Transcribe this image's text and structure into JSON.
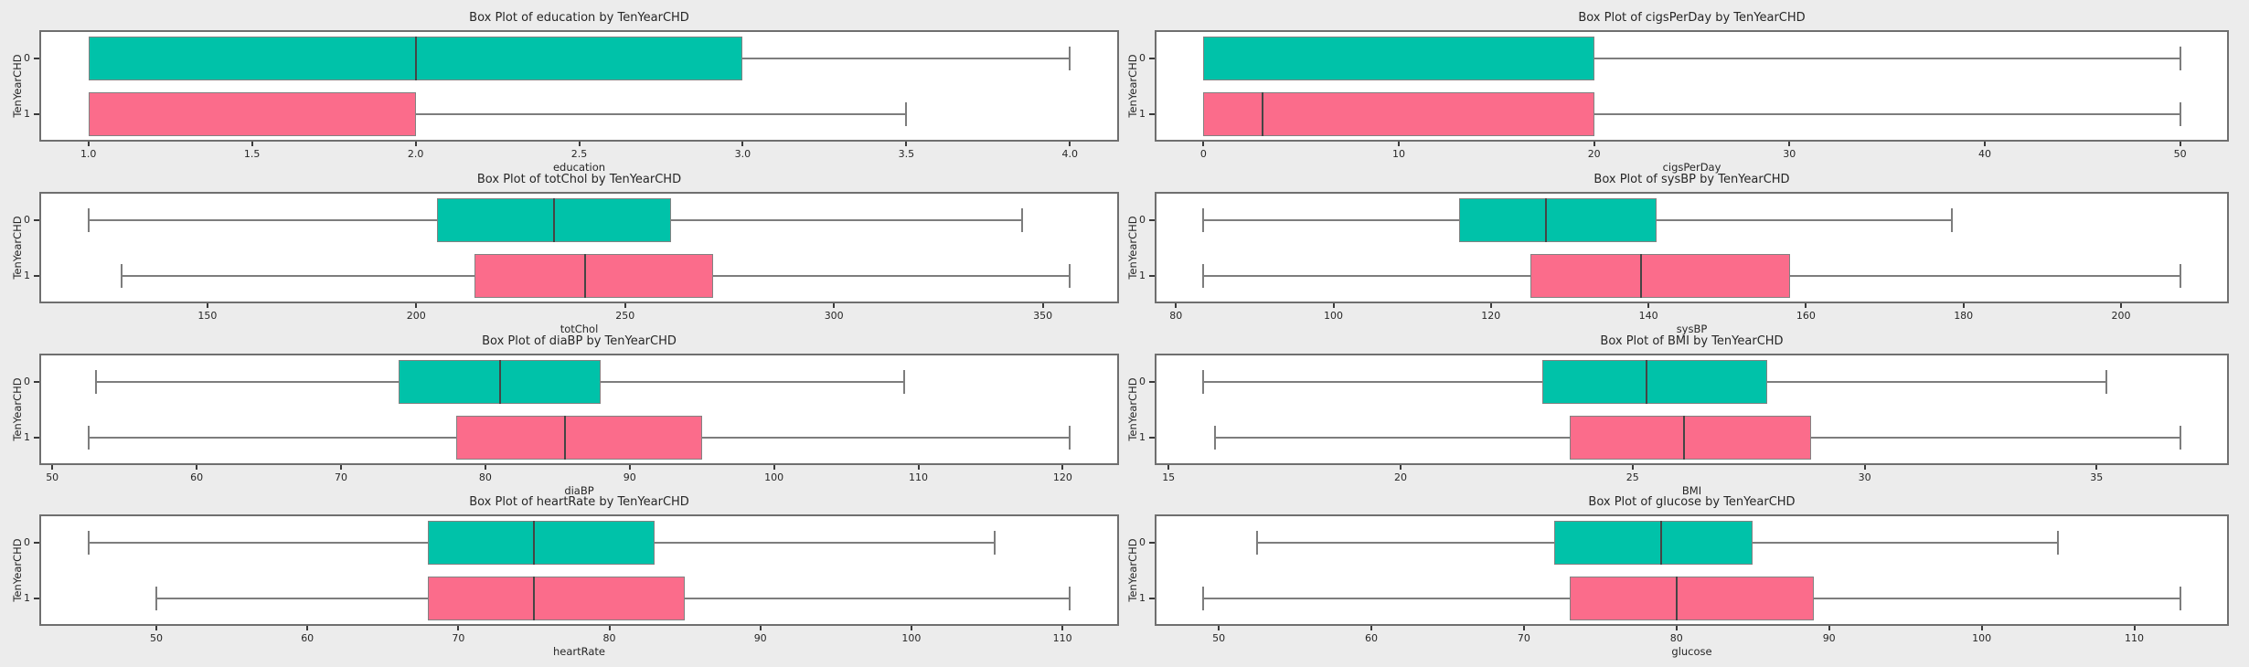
{
  "figure_title": "",
  "colors": {
    "figure_background": "#ececec",
    "axes_background": "#ffffff",
    "axes_border": "#6f6f6f",
    "group0_fill": "#00C2A9",
    "group1_fill": "#FB6C8B",
    "box_border": "#828282",
    "whisker": "#7d7d7d",
    "median_line": "#454545",
    "text": "#262626"
  },
  "chart_data": [
    {
      "type": "box",
      "orientation": "horizontal",
      "grid": false,
      "title": "Box Plot of education by TenYearCHD",
      "xlabel": "education",
      "ylabel": "TenYearCHD",
      "xlim": [
        0.85,
        4.15
      ],
      "tick_values": [
        1.0,
        1.5,
        2.0,
        2.5,
        3.0,
        3.5,
        4.0
      ],
      "tick_labels": [
        "1.0",
        "1.5",
        "2.0",
        "2.5",
        "3.0",
        "3.5",
        "4.0"
      ],
      "groups": [
        {
          "label": "0",
          "whisker_min": 1.0,
          "q1": 1.0,
          "median": 2.0,
          "q3": 3.0,
          "whisker_max": 4.0
        },
        {
          "label": "1",
          "whisker_min": 1.0,
          "q1": 1.0,
          "median": 1.0,
          "q3": 2.0,
          "whisker_max": 3.5
        }
      ]
    },
    {
      "type": "box",
      "orientation": "horizontal",
      "grid": false,
      "title": "Box Plot of cigsPerDay by TenYearCHD",
      "xlabel": "cigsPerDay",
      "ylabel": "TenYearCHD",
      "xlim": [
        -2.5,
        52.5
      ],
      "tick_values": [
        0,
        10,
        20,
        30,
        40,
        50
      ],
      "tick_labels": [
        "0",
        "10",
        "20",
        "30",
        "40",
        "50"
      ],
      "groups": [
        {
          "label": "0",
          "whisker_min": 0,
          "q1": 0,
          "median": 0,
          "q3": 20,
          "whisker_max": 50
        },
        {
          "label": "1",
          "whisker_min": 0,
          "q1": 0,
          "median": 3,
          "q3": 20,
          "whisker_max": 50
        }
      ]
    },
    {
      "type": "box",
      "orientation": "horizontal",
      "grid": false,
      "title": "Box Plot of totChol by TenYearCHD",
      "xlabel": "totChol",
      "ylabel": "TenYearCHD",
      "xlim": [
        109.75,
        368.25
      ],
      "tick_values": [
        150,
        200,
        250,
        300,
        350
      ],
      "tick_labels": [
        "150",
        "200",
        "250",
        "300",
        "350"
      ],
      "groups": [
        {
          "label": "0",
          "whisker_min": 121.5,
          "q1": 205,
          "median": 233,
          "q3": 261,
          "whisker_max": 345
        },
        {
          "label": "1",
          "whisker_min": 129.5,
          "q1": 214,
          "median": 240.5,
          "q3": 271,
          "whisker_max": 356.5
        }
      ]
    },
    {
      "type": "box",
      "orientation": "horizontal",
      "grid": false,
      "title": "Box Plot of sysBP by TenYearCHD",
      "xlabel": "sysBP",
      "ylabel": "TenYearCHD",
      "xlim": [
        77.3,
        213.7
      ],
      "tick_values": [
        80,
        100,
        120,
        140,
        160,
        180,
        200
      ],
      "tick_labels": [
        "80",
        "100",
        "120",
        "140",
        "160",
        "180",
        "200"
      ],
      "groups": [
        {
          "label": "0",
          "whisker_min": 83.5,
          "q1": 116,
          "median": 127,
          "q3": 141,
          "whisker_max": 178.5
        },
        {
          "label": "1",
          "whisker_min": 83.5,
          "q1": 125,
          "median": 139,
          "q3": 158,
          "whisker_max": 207.5
        }
      ]
    },
    {
      "type": "box",
      "orientation": "horizontal",
      "grid": false,
      "title": "Box Plot of diaBP by TenYearCHD",
      "xlabel": "diaBP",
      "ylabel": "TenYearCHD",
      "xlim": [
        49.1,
        123.9
      ],
      "tick_values": [
        50,
        60,
        70,
        80,
        90,
        100,
        110,
        120
      ],
      "tick_labels": [
        "50",
        "60",
        "70",
        "80",
        "90",
        "100",
        "110",
        "120"
      ],
      "groups": [
        {
          "label": "0",
          "whisker_min": 53,
          "q1": 74,
          "median": 81,
          "q3": 88,
          "whisker_max": 109
        },
        {
          "label": "1",
          "whisker_min": 52.5,
          "q1": 78,
          "median": 85.5,
          "q3": 95,
          "whisker_max": 120.5
        }
      ]
    },
    {
      "type": "box",
      "orientation": "horizontal",
      "grid": false,
      "title": "Box Plot of BMI by TenYearCHD",
      "xlabel": "BMI",
      "ylabel": "TenYearCHD",
      "xlim": [
        14.7,
        37.85
      ],
      "tick_values": [
        15,
        20,
        25,
        30,
        35
      ],
      "tick_labels": [
        "15",
        "20",
        "25",
        "30",
        "35"
      ],
      "groups": [
        {
          "label": "0",
          "whisker_min": 15.75,
          "q1": 23.05,
          "median": 25.3,
          "q3": 27.9,
          "whisker_max": 35.2
        },
        {
          "label": "1",
          "whisker_min": 16.0,
          "q1": 23.65,
          "median": 26.1,
          "q3": 28.85,
          "whisker_max": 36.8
        }
      ]
    },
    {
      "type": "box",
      "orientation": "horizontal",
      "grid": false,
      "title": "Box Plot of heartRate by TenYearCHD",
      "xlabel": "heartRate",
      "ylabel": "TenYearCHD",
      "xlim": [
        42.25,
        113.75
      ],
      "tick_values": [
        50,
        60,
        70,
        80,
        90,
        100,
        110
      ],
      "tick_labels": [
        "50",
        "60",
        "70",
        "80",
        "90",
        "100",
        "110"
      ],
      "groups": [
        {
          "label": "0",
          "whisker_min": 45.5,
          "q1": 68,
          "median": 75,
          "q3": 83,
          "whisker_max": 105.5
        },
        {
          "label": "1",
          "whisker_min": 50,
          "q1": 68,
          "median": 75,
          "q3": 85,
          "whisker_max": 110.5
        }
      ]
    },
    {
      "type": "box",
      "orientation": "horizontal",
      "grid": false,
      "title": "Box Plot of glucose by TenYearCHD",
      "xlabel": "glucose",
      "ylabel": "TenYearCHD",
      "xlim": [
        45.8,
        116.2
      ],
      "tick_values": [
        50,
        60,
        70,
        80,
        90,
        100,
        110
      ],
      "tick_labels": [
        "50",
        "60",
        "70",
        "80",
        "90",
        "100",
        "110"
      ],
      "groups": [
        {
          "label": "0",
          "whisker_min": 52.5,
          "q1": 72,
          "median": 79,
          "q3": 85,
          "whisker_max": 105
        },
        {
          "label": "1",
          "whisker_min": 49,
          "q1": 73,
          "median": 80,
          "q3": 89,
          "whisker_max": 113
        }
      ]
    }
  ]
}
